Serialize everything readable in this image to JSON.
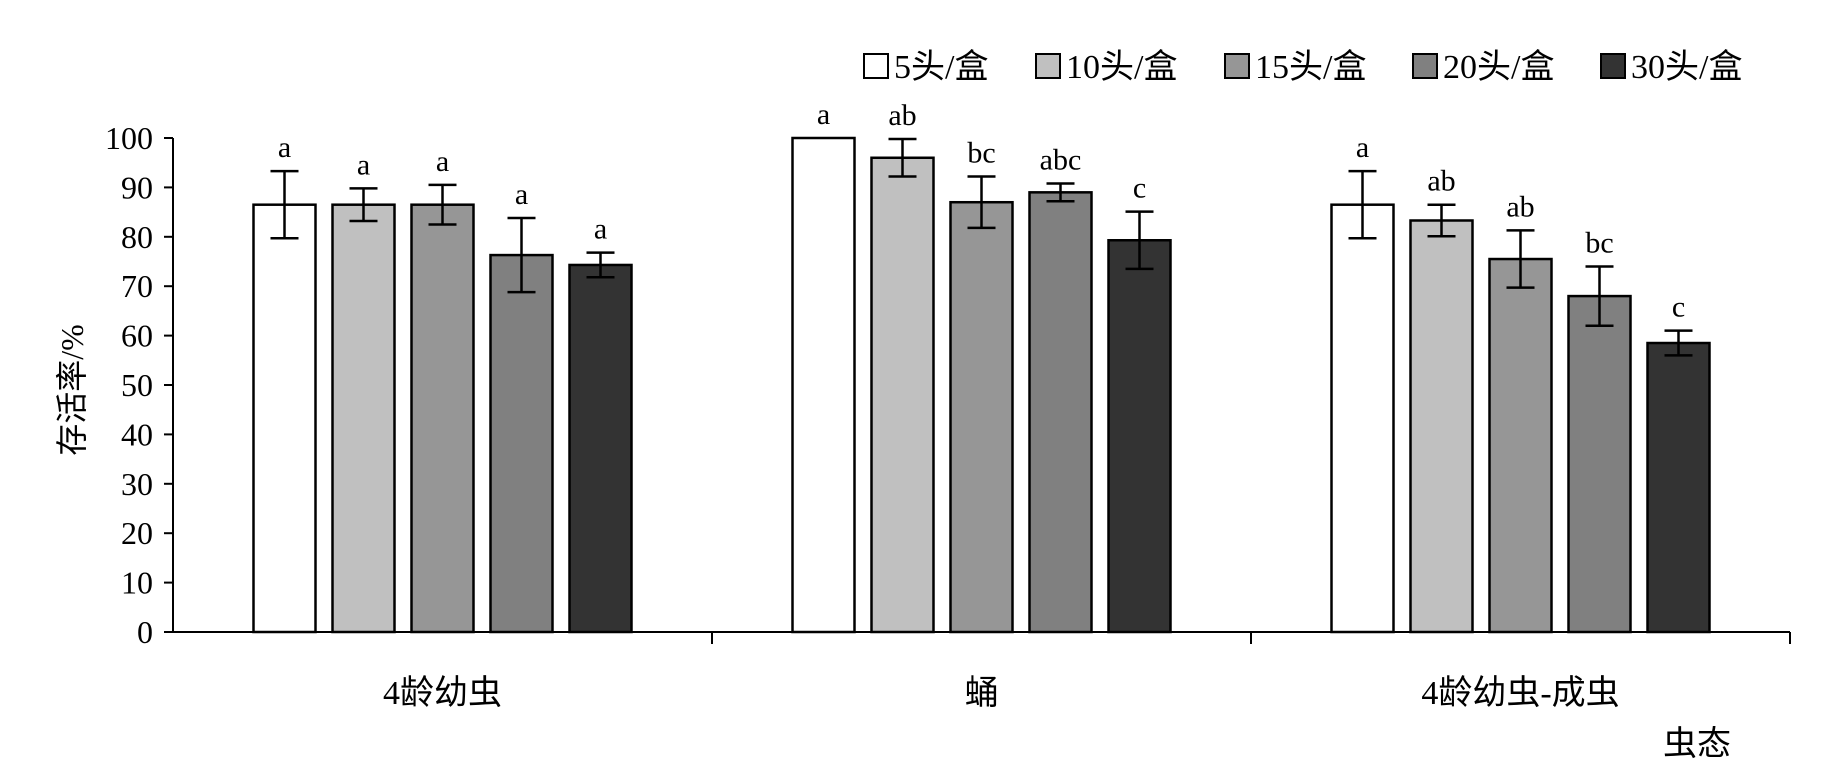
{
  "chart_data": {
    "type": "bar",
    "xlabel": "虫态",
    "ylabel": "存活率/%",
    "ylim": [
      0,
      100
    ],
    "yticks": [
      0,
      10,
      20,
      30,
      40,
      50,
      60,
      70,
      80,
      90,
      100
    ],
    "categories": [
      "4龄幼虫",
      "蛹",
      "4龄幼虫-成虫"
    ],
    "legend_position": "top-right",
    "series": [
      {
        "name": "5头/盒",
        "color": "#ffffff",
        "values": [
          86.5,
          100,
          86.5
        ],
        "errors": [
          6.8,
          0,
          6.8
        ],
        "letters": [
          "a",
          "a",
          "a"
        ]
      },
      {
        "name": "10头/盒",
        "color": "#c0c0c0",
        "values": [
          86.5,
          96.0,
          83.3
        ],
        "errors": [
          3.3,
          3.8,
          3.2
        ],
        "letters": [
          "a",
          "ab",
          "ab"
        ]
      },
      {
        "name": "15头/盒",
        "color": "#969696",
        "values": [
          86.5,
          87.0,
          75.5
        ],
        "errors": [
          4.0,
          5.2,
          5.8
        ],
        "letters": [
          "a",
          "bc",
          "ab"
        ]
      },
      {
        "name": "20头/盒",
        "color": "#808080",
        "values": [
          76.3,
          89.0,
          68.0
        ],
        "errors": [
          7.5,
          1.8,
          6.0
        ],
        "letters": [
          "a",
          "abc",
          "bc"
        ]
      },
      {
        "name": "30头/盒",
        "color": "#333333",
        "values": [
          74.3,
          79.3,
          58.5
        ],
        "errors": [
          2.5,
          5.8,
          2.5
        ],
        "letters": [
          "a",
          "c",
          "c"
        ]
      }
    ]
  }
}
